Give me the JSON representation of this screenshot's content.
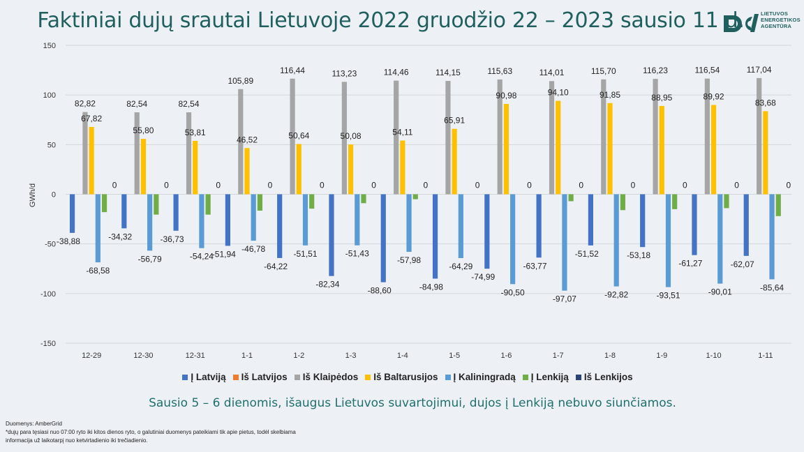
{
  "page": {
    "title": "Faktiniai dujų srautai Lietuvoje 2022 gruodžio 22 – 2023 sausio 11 d.",
    "logo_text": [
      "LIETUVOS",
      "ENERGETIKOS",
      "AGENTŪRA"
    ],
    "note": "Sausio 5 – 6 dienomis, išaugus Lietuvos suvartojimui, dujos į Lenkiją nebuvo siunčiamos.",
    "footer": [
      "Duomenys: AmberGrid",
      "*dujų para tęsiasi nuo 07:00 ryto iki kitos dienos ryto, o galutiniai duomenys pateikiami tik apie pietus, todėl skelbiama",
      "informacija už laikotarpį nuo ketvirtadienio iki trečiadienio."
    ]
  },
  "chart_data": {
    "type": "bar",
    "ylabel": "GWh/d",
    "ylim": [
      -150,
      150
    ],
    "yticks": [
      150,
      100,
      50,
      0,
      -50,
      -100,
      -150
    ],
    "grid": true,
    "legend_position": "bottom",
    "categories": [
      "12-29",
      "12-30",
      "12-31",
      "1-1",
      "1-2",
      "1-3",
      "1-4",
      "1-5",
      "1-6",
      "1-7",
      "1-8",
      "1-9",
      "1-10",
      "1-11"
    ],
    "series": [
      {
        "name": "Į Latviją",
        "color": "#4472c4",
        "values": [
          -38.88,
          -34.32,
          -36.73,
          -51.94,
          -64.22,
          -82.34,
          -88.6,
          -84.98,
          -74.99,
          -63.77,
          -51.52,
          -53.18,
          -61.27,
          -62.07
        ],
        "labels": [
          "-38,88",
          "-34,32",
          "-36,73",
          "-51,94",
          "-64,22",
          "-82,34",
          "-88,60",
          "-84,98",
          "-74,99",
          "-63,77",
          "-51,52",
          "-53,18",
          "-61,27",
          "-62,07"
        ]
      },
      {
        "name": "Iš Latvijos",
        "color": "#ed7d31",
        "values": [
          0,
          0,
          0,
          0,
          0,
          0,
          0,
          0,
          0,
          0,
          0,
          0,
          0,
          0
        ],
        "labels": []
      },
      {
        "name": "Iš Klaipėdos",
        "color": "#a5a5a5",
        "values": [
          82.82,
          82.54,
          82.54,
          105.89,
          116.44,
          113.23,
          114.46,
          114.15,
          115.63,
          114.01,
          115.7,
          116.23,
          116.54,
          117.04
        ],
        "labels": [
          "82,82",
          "82,54",
          "82,54",
          "105,89",
          "116,44",
          "113,23",
          "114,46",
          "114,15",
          "115,63",
          "114,01",
          "115,70",
          "116,23",
          "116,54",
          "117,04"
        ]
      },
      {
        "name": "Iš Baltarusijos",
        "color": "#ffc000",
        "values": [
          67.82,
          55.8,
          53.81,
          46.52,
          50.64,
          50.08,
          54.11,
          65.91,
          90.98,
          94.1,
          91.85,
          88.95,
          89.92,
          83.68
        ],
        "labels": [
          "67,82",
          "55,80",
          "53,81",
          "46,52",
          "50,64",
          "50,08",
          "54,11",
          "65,91",
          "90,98",
          "94,10",
          "91,85",
          "88,95",
          "89,92",
          "83,68"
        ]
      },
      {
        "name": "Į Kaliningradą",
        "color": "#5b9bd5",
        "values": [
          -68.58,
          -56.79,
          -54.24,
          -46.78,
          -51.51,
          -51.43,
          -57.98,
          -64.29,
          -90.5,
          -97.07,
          -92.82,
          -93.51,
          -90.01,
          -85.64
        ],
        "labels": [
          "-68,58",
          "-56,79",
          "-54,24",
          "-46,78",
          "-51,51",
          "-51,43",
          "-57,98",
          "-64,29",
          "-90,50",
          "-97,07",
          "-92,82",
          "-93,51",
          "-90,01",
          "-85,64"
        ]
      },
      {
        "name": "Į Lenkiją",
        "color": "#70ad47",
        "values": [
          -18,
          -20.5,
          -20.5,
          -16.5,
          -14.5,
          -9,
          -5,
          0,
          0,
          -7,
          -16,
          -15,
          -14,
          -22
        ],
        "labels": []
      },
      {
        "name": "Iš Lenkijos",
        "color": "#264478",
        "values": [
          0,
          0,
          0,
          0,
          0,
          0,
          0,
          0,
          0,
          0,
          0,
          0,
          0,
          0
        ],
        "labels": [
          "0",
          "0",
          "0",
          "0",
          "0",
          "0",
          "0",
          "0",
          "0",
          "0",
          "0",
          "0",
          "0",
          "0"
        ]
      }
    ]
  }
}
